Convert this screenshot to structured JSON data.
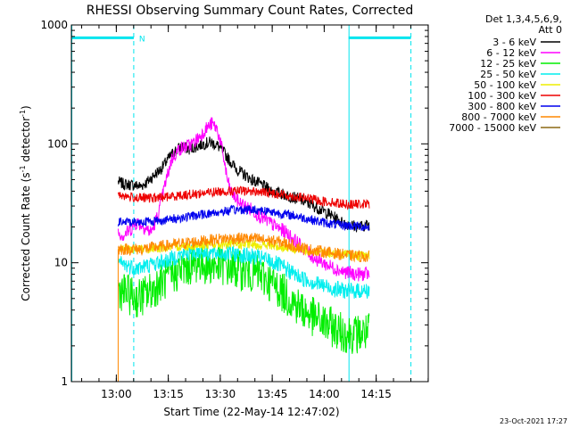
{
  "chart_data": {
    "type": "line",
    "title": "RHESSI Observing Summary Count Rates, Corrected",
    "xlabel": "Start Time (22-May-14 12:47:02)",
    "ylabel": "Corrected Count Rate (s",
    "ylabel_sup1": "-1",
    "ylabel_mid": " detector",
    "ylabel_sup2": "-1",
    "ylabel_end": ")",
    "yscale": "log",
    "ylim": [
      1,
      1000
    ],
    "xlim_minutes_from_start": [
      0,
      103
    ],
    "y_tick_labels": [
      "1000",
      "100",
      "10",
      "1"
    ],
    "x_ticks": [
      {
        "label": "13:00",
        "min": 12.97
      },
      {
        "label": "13:15",
        "min": 27.97
      },
      {
        "label": "13:30",
        "min": 42.97
      },
      {
        "label": "13:45",
        "min": 57.97
      },
      {
        "label": "14:00",
        "min": 72.97
      },
      {
        "label": "14:15",
        "min": 87.97
      }
    ],
    "legend_header": [
      "Det 1,3,4,5,6,9,",
      "Att 0"
    ],
    "legend_placement": "right",
    "timestamp": "23-Oct-2021 17:27",
    "night_marker_label": "N",
    "night_intervals_minutes": [
      [
        0,
        18
      ],
      [
        80,
        98
      ]
    ],
    "night_dashed_boundaries_minutes": [
      18,
      98
    ],
    "night_solid_boundaries_minutes": [
      0,
      80
    ],
    "night_bar_value": 780,
    "colors": {
      "background": "#ffffff",
      "axes": "#000000",
      "night": "#00e5ee"
    },
    "series": [
      {
        "name": "3 - 6 keV",
        "color": "#000000",
        "noise": 0.05,
        "points": [
          [
            13.5,
            48
          ],
          [
            15,
            46
          ],
          [
            18,
            45
          ],
          [
            20,
            44
          ],
          [
            22,
            48
          ],
          [
            24,
            55
          ],
          [
            26,
            62
          ],
          [
            28,
            75
          ],
          [
            30,
            88
          ],
          [
            32,
            95
          ],
          [
            34,
            90
          ],
          [
            36,
            95
          ],
          [
            38,
            100
          ],
          [
            40,
            103
          ],
          [
            42,
            98
          ],
          [
            44,
            85
          ],
          [
            46,
            70
          ],
          [
            48,
            60
          ],
          [
            50,
            55
          ],
          [
            52,
            50
          ],
          [
            55,
            45
          ],
          [
            58,
            40
          ],
          [
            62,
            37
          ],
          [
            66,
            34
          ],
          [
            70,
            30
          ],
          [
            73,
            27
          ],
          [
            76,
            24
          ],
          [
            78,
            22
          ],
          [
            80,
            21
          ],
          [
            83,
            20
          ],
          [
            86,
            21
          ]
        ]
      },
      {
        "name": "6 - 12 keV",
        "color": "#ff00ff",
        "noise": 0.06,
        "points": [
          [
            13.5,
            18
          ],
          [
            15,
            17
          ],
          [
            17,
            19
          ],
          [
            19,
            22
          ],
          [
            21,
            20
          ],
          [
            23,
            18
          ],
          [
            25,
            25
          ],
          [
            27,
            45
          ],
          [
            29,
            75
          ],
          [
            31,
            90
          ],
          [
            33,
            95
          ],
          [
            35,
            100
          ],
          [
            37,
            115
          ],
          [
            39,
            135
          ],
          [
            40.5,
            148
          ],
          [
            42,
            135
          ],
          [
            43,
            105
          ],
          [
            44,
            75
          ],
          [
            45,
            50
          ],
          [
            46,
            40
          ],
          [
            48,
            33
          ],
          [
            50,
            30
          ],
          [
            52,
            28
          ],
          [
            55,
            24
          ],
          [
            58,
            21
          ],
          [
            62,
            18
          ],
          [
            66,
            14
          ],
          [
            70,
            11
          ],
          [
            74,
            9.5
          ],
          [
            78,
            8.5
          ],
          [
            82,
            8
          ],
          [
            86,
            8
          ]
        ]
      },
      {
        "name": "12 - 25 keV",
        "color": "#00ee00",
        "noise": 0.17,
        "points": [
          [
            13.5,
            6
          ],
          [
            16,
            5.5
          ],
          [
            19,
            5
          ],
          [
            22,
            5.5
          ],
          [
            25,
            6.5
          ],
          [
            28,
            7.5
          ],
          [
            31,
            8.5
          ],
          [
            34,
            9.5
          ],
          [
            37,
            10
          ],
          [
            40,
            9.5
          ],
          [
            43,
            9.5
          ],
          [
            46,
            9
          ],
          [
            50,
            8.5
          ],
          [
            54,
            8
          ],
          [
            57,
            7
          ],
          [
            60,
            6
          ],
          [
            63,
            5
          ],
          [
            66,
            4.2
          ],
          [
            69,
            3.6
          ],
          [
            72,
            3.2
          ],
          [
            75,
            2.9
          ],
          [
            78,
            2.6
          ],
          [
            82,
            2.5
          ],
          [
            86,
            2.6
          ]
        ]
      },
      {
        "name": "25 - 50 keV",
        "color": "#00eeee",
        "noise": 0.07,
        "points": [
          [
            13.5,
            10
          ],
          [
            16,
            9.5
          ],
          [
            19,
            9
          ],
          [
            22,
            9.5
          ],
          [
            25,
            10
          ],
          [
            28,
            10.5
          ],
          [
            31,
            11.5
          ],
          [
            34,
            12
          ],
          [
            37,
            12.5
          ],
          [
            40,
            12
          ],
          [
            43,
            12
          ],
          [
            46,
            12
          ],
          [
            50,
            11.5
          ],
          [
            54,
            11
          ],
          [
            57,
            10.5
          ],
          [
            60,
            9.5
          ],
          [
            63,
            8.5
          ],
          [
            66,
            7.5
          ],
          [
            69,
            7
          ],
          [
            72,
            6.5
          ],
          [
            76,
            6
          ],
          [
            80,
            5.8
          ],
          [
            86,
            5.8
          ]
        ]
      },
      {
        "name": "50 - 100 keV",
        "color": "#eeee00",
        "noise": 0.04,
        "points": [
          [
            13.5,
            13
          ],
          [
            16,
            13
          ],
          [
            20,
            13
          ],
          [
            24,
            13.2
          ],
          [
            28,
            13.5
          ],
          [
            32,
            13.8
          ],
          [
            36,
            14
          ],
          [
            40,
            14.2
          ],
          [
            44,
            14.3
          ],
          [
            48,
            14.3
          ],
          [
            52,
            14.2
          ],
          [
            56,
            14
          ],
          [
            60,
            13.6
          ],
          [
            64,
            13.2
          ],
          [
            68,
            12.8
          ],
          [
            72,
            12.3
          ],
          [
            76,
            12
          ],
          [
            80,
            11.6
          ],
          [
            86,
            11.4
          ]
        ]
      },
      {
        "name": "100 - 300 keV",
        "color": "#ee0000",
        "noise": 0.04,
        "points": [
          [
            13.5,
            38
          ],
          [
            16,
            36
          ],
          [
            20,
            35
          ],
          [
            24,
            35
          ],
          [
            28,
            36
          ],
          [
            32,
            37
          ],
          [
            36,
            38
          ],
          [
            40,
            39
          ],
          [
            44,
            40
          ],
          [
            48,
            40
          ],
          [
            52,
            40
          ],
          [
            56,
            39
          ],
          [
            60,
            38
          ],
          [
            64,
            36
          ],
          [
            68,
            35
          ],
          [
            72,
            33
          ],
          [
            76,
            32
          ],
          [
            80,
            31
          ],
          [
            86,
            31
          ]
        ]
      },
      {
        "name": "300 - 800 keV",
        "color": "#0000ee",
        "noise": 0.04,
        "points": [
          [
            13.5,
            22
          ],
          [
            16,
            22
          ],
          [
            20,
            22
          ],
          [
            24,
            22.5
          ],
          [
            28,
            23
          ],
          [
            32,
            24
          ],
          [
            36,
            25
          ],
          [
            40,
            26
          ],
          [
            44,
            27
          ],
          [
            48,
            28
          ],
          [
            52,
            28
          ],
          [
            56,
            27.5
          ],
          [
            60,
            26
          ],
          [
            64,
            25
          ],
          [
            68,
            23.5
          ],
          [
            72,
            22
          ],
          [
            76,
            21
          ],
          [
            80,
            20.5
          ],
          [
            86,
            20
          ]
        ]
      },
      {
        "name": "800 - 7000 keV",
        "color": "#ff8800",
        "noise": 0.05,
        "points": [
          [
            13.5,
            13
          ],
          [
            16,
            13
          ],
          [
            20,
            13
          ],
          [
            24,
            13.5
          ],
          [
            28,
            14
          ],
          [
            32,
            14.5
          ],
          [
            36,
            15
          ],
          [
            40,
            15.5
          ],
          [
            44,
            16
          ],
          [
            48,
            16
          ],
          [
            52,
            16
          ],
          [
            56,
            15.5
          ],
          [
            60,
            15
          ],
          [
            64,
            14
          ],
          [
            68,
            13
          ],
          [
            72,
            12.5
          ],
          [
            76,
            12
          ],
          [
            80,
            11.5
          ],
          [
            86,
            11.2
          ]
        ]
      },
      {
        "name": "7000 - 15000 keV",
        "color": "#8b6914",
        "noise": 0,
        "points": []
      }
    ]
  }
}
